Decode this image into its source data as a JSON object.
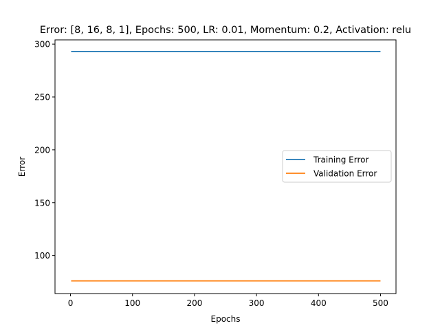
{
  "chart_data": {
    "type": "line",
    "title": "Error: [8, 16, 8, 1], Epochs: 500, LR: 0.01, Momentum: 0.2, Activation: relu",
    "xlabel": "Epochs",
    "ylabel": "Error",
    "xlim": [
      -25,
      525
    ],
    "ylim": [
      64,
      304
    ],
    "xticks": [
      0,
      100,
      200,
      300,
      400,
      500
    ],
    "yticks": [
      100,
      150,
      200,
      250,
      300
    ],
    "grid": false,
    "legend_position": "center-right",
    "series": [
      {
        "name": "Training Error",
        "color": "#1f77b4",
        "x": [
          1,
          500
        ],
        "y": [
          293,
          293
        ]
      },
      {
        "name": "Validation Error",
        "color": "#ff7f0e",
        "x": [
          1,
          500
        ],
        "y": [
          76,
          76
        ]
      }
    ]
  }
}
